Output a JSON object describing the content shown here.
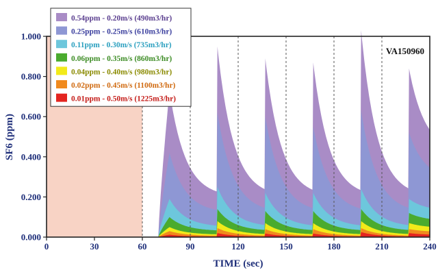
{
  "chart_data": {
    "type": "area",
    "xlabel": "TIME (sec)",
    "ylabel": "SF6 (ppm)",
    "xlim": [
      0,
      240
    ],
    "ylim": [
      0,
      1.0
    ],
    "xticks": [
      0,
      30,
      60,
      90,
      120,
      150,
      180,
      210,
      240
    ],
    "yticks": [
      0.0,
      0.2,
      0.4,
      0.6,
      0.8,
      1.0
    ],
    "xtick_labels": [
      "0",
      "30",
      "60",
      "90",
      "120",
      "150",
      "180",
      "210",
      "240"
    ],
    "ytick_labels": [
      "0.000",
      "0.200",
      "0.400",
      "0.600",
      "0.800",
      "1.000"
    ],
    "annotation": "VA150960",
    "shaded_region_x": [
      0,
      60
    ],
    "shaded_color": "#f8d3c5",
    "vertical_dashed_lines_x": [
      60,
      90,
      120,
      150,
      180,
      210
    ],
    "legend_placement": "top-left",
    "peak_times": [
      77,
      107,
      137,
      167,
      197,
      227
    ],
    "series": [
      {
        "name": "0.54ppm - 0.20m/s (490m3/hr)",
        "color": "#a98cc6",
        "text_color": "#5b3f8f",
        "peaks": [
          0.73,
          0.95,
          0.89,
          0.87,
          1.03,
          0.84
        ],
        "baseline": 0.2,
        "end_value": 0.42
      },
      {
        "name": "0.25ppm - 0.25m/s (610m3/hr)",
        "color": "#8e97d4",
        "text_color": "#3b3f9e",
        "peaks": [
          0.42,
          0.62,
          0.6,
          0.55,
          0.63,
          0.52
        ],
        "baseline": 0.12,
        "end_value": 0.28
      },
      {
        "name": "0.11ppm - 0.30m/s (735m3/hr)",
        "color": "#6dc7dc",
        "text_color": "#2a9fbf",
        "peaks": [
          0.19,
          0.25,
          0.22,
          0.22,
          0.24,
          0.19
        ],
        "baseline": 0.05,
        "end_value": 0.13
      },
      {
        "name": "0.06ppm - 0.35m/s (860m3/hr)",
        "color": "#4aab2e",
        "text_color": "#3d8c25",
        "peaks": [
          0.1,
          0.14,
          0.13,
          0.13,
          0.14,
          0.12
        ],
        "baseline": 0.03,
        "end_value": 0.08
      },
      {
        "name": "0.04ppm - 0.40m/s (980m3/hr)",
        "color": "#f2ea1a",
        "text_color": "#8a8a00",
        "peaks": [
          0.05,
          0.08,
          0.07,
          0.07,
          0.08,
          0.07
        ],
        "baseline": 0.012,
        "end_value": 0.045
      },
      {
        "name": "0.02ppm - 0.45m/s (1100m3/hr)",
        "color": "#f08a1e",
        "text_color": "#d06a10",
        "peaks": [
          0.03,
          0.045,
          0.04,
          0.04,
          0.045,
          0.04
        ],
        "baseline": 0.006,
        "end_value": 0.025
      },
      {
        "name": "0.01ppm - 0.50m/s (1225m3/hr)",
        "color": "#e42520",
        "text_color": "#c41c18",
        "peaks": [
          0.012,
          0.02,
          0.018,
          0.018,
          0.025,
          0.02
        ],
        "baseline": 0.002,
        "end_value": 0.01
      }
    ]
  }
}
